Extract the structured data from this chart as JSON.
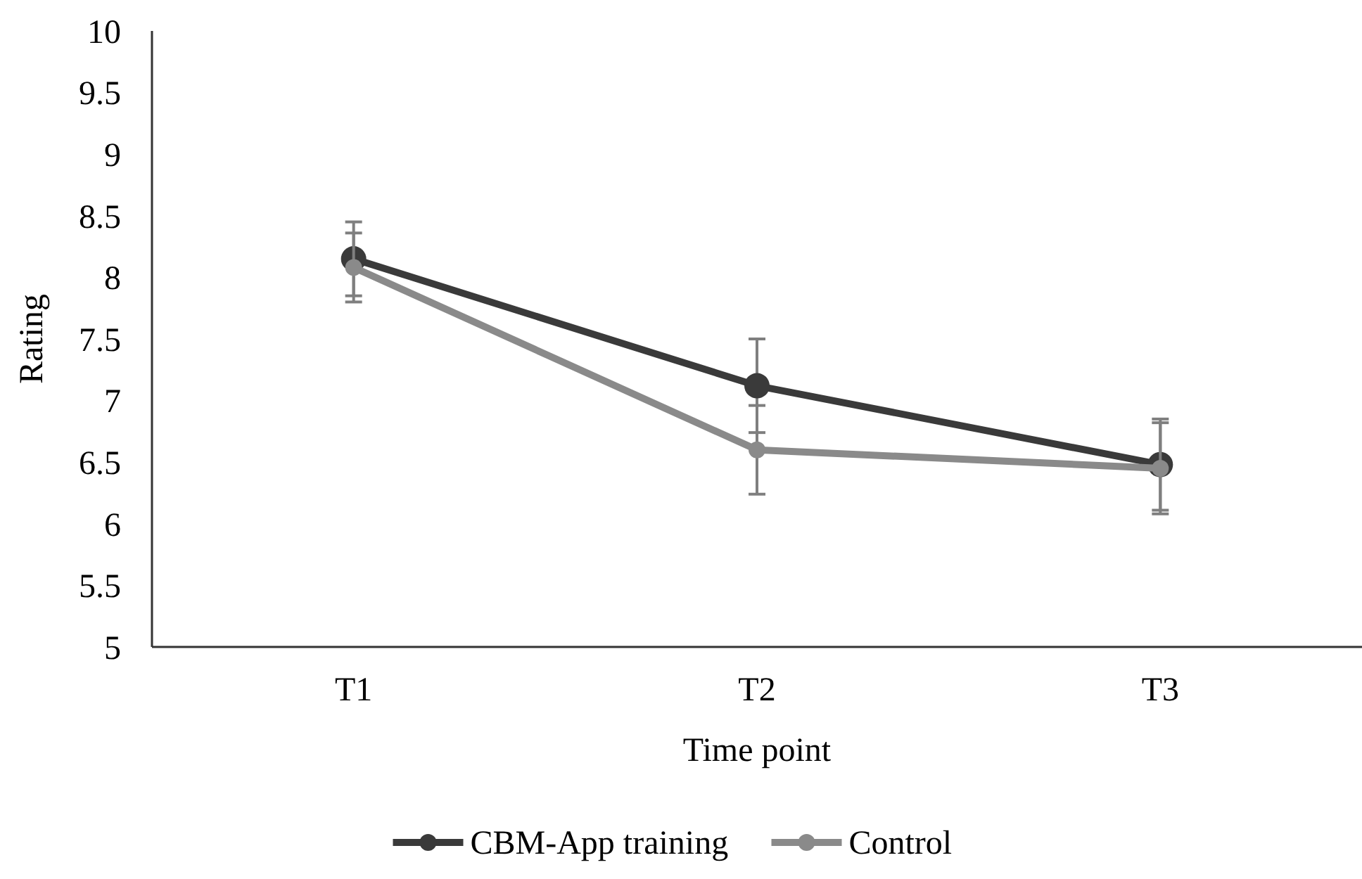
{
  "chart_data": {
    "type": "line",
    "xlabel": "Time point",
    "ylabel": "Rating",
    "categories": [
      "T1",
      "T2",
      "T3"
    ],
    "series": [
      {
        "name": "CBM-App training",
        "color": "#3a3a3a",
        "values": [
          8.15,
          7.12,
          6.48
        ],
        "errors": [
          0.3,
          0.38,
          0.37
        ]
      },
      {
        "name": "Control",
        "color": "#8a8a8a",
        "values": [
          8.08,
          6.6,
          6.45
        ],
        "errors": [
          0.28,
          0.36,
          0.37
        ]
      }
    ],
    "ylim": [
      5,
      10
    ],
    "yticks": [
      5,
      5.5,
      6,
      6.5,
      7,
      7.5,
      8,
      8.5,
      9,
      9.5,
      10
    ],
    "grid": false,
    "legend": "bottom",
    "marker": "circle",
    "line_style": "solid"
  }
}
